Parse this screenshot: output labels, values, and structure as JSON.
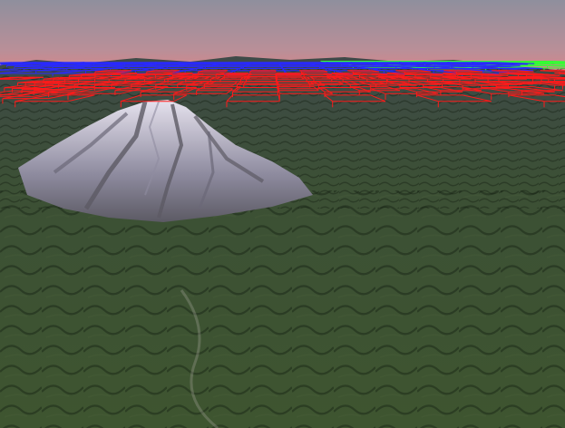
{
  "viewport": {
    "sky_colors": {
      "top": "#8f8f9d",
      "mid": "#b98f98",
      "horizon": "#ee7d7d"
    },
    "terrain_colors": {
      "far": "#3e4a48",
      "mid": "#3c5035",
      "near": "#3e5530",
      "shadow": "#243322"
    },
    "mountain_colors": {
      "snow": "#e6e2ee",
      "rock": "#5c5a64",
      "shade": "#8f8ca0"
    }
  },
  "tile_layers": [
    {
      "level": "far",
      "color": "#2a2aff",
      "icon": "blue-tile-grid"
    },
    {
      "level": "distant-peak",
      "color": "#33ff33",
      "icon": "green-tile-grid"
    },
    {
      "level": "mid",
      "color": "#ff1a1a",
      "icon": "red-tile-grid"
    },
    {
      "level": "near",
      "color": "#ffff2a",
      "icon": "yellow-tile-grid"
    }
  ]
}
